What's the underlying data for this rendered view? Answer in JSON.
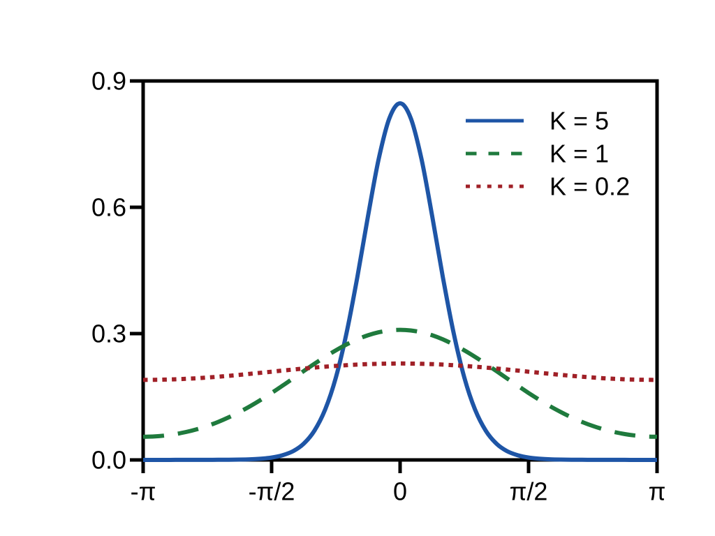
{
  "figure": {
    "background": "#ffffff",
    "axes_color": "#000000",
    "text_color": "#000000"
  },
  "chart_data": {
    "type": "line",
    "title": "",
    "xlabel": "",
    "ylabel": "",
    "description": "Circular (von Mises style) distribution density curves over angle, for three concentration parameters K",
    "x_unit": "radians, shown as multiples of pi",
    "xlim": [
      -1,
      1
    ],
    "ylim": [
      0,
      0.9
    ],
    "grid": false,
    "legend_position": "upper right",
    "x_ticks": [
      {
        "pos": -1.0,
        "label": "-π"
      },
      {
        "pos": -0.5,
        "label": "-π/2"
      },
      {
        "pos": 0.0,
        "label": "0"
      },
      {
        "pos": 0.5,
        "label": "π/2"
      },
      {
        "pos": 1.0,
        "label": "π"
      }
    ],
    "y_ticks": [
      {
        "pos": 0.0,
        "label": "0.0"
      },
      {
        "pos": 0.3,
        "label": "0.3"
      },
      {
        "pos": 0.6,
        "label": "0.6"
      },
      {
        "pos": 0.9,
        "label": "0.9"
      }
    ],
    "x_over_pi": [
      -1,
      -0.9583,
      -0.9167,
      -0.875,
      -0.8333,
      -0.7917,
      -0.75,
      -0.7083,
      -0.6667,
      -0.625,
      -0.5833,
      -0.5417,
      -0.5,
      -0.4583,
      -0.4167,
      -0.375,
      -0.3333,
      -0.2917,
      -0.25,
      -0.2083,
      -0.1667,
      -0.125,
      -0.0833,
      -0.0417,
      0,
      0.0417,
      0.0833,
      0.125,
      0.1667,
      0.2083,
      0.25,
      0.2917,
      0.3333,
      0.375,
      0.4167,
      0.4583,
      0.5,
      0.5417,
      0.5833,
      0.625,
      0.6667,
      0.7083,
      0.75,
      0.7917,
      0.8333,
      0.875,
      0.9167,
      0.9583,
      1
    ],
    "series": [
      {
        "name": "K = 5",
        "color": "#1e55a6",
        "style": "solid",
        "y": [
          0.0,
          0.0,
          0.0,
          0.0001,
          0.0001,
          0.0001,
          0.0002,
          0.0003,
          0.0005,
          0.0008,
          0.0015,
          0.003,
          0.0057,
          0.011,
          0.0208,
          0.0386,
          0.0695,
          0.1197,
          0.1956,
          0.3015,
          0.4334,
          0.5787,
          0.7143,
          0.8115,
          0.847,
          0.8115,
          0.7143,
          0.5787,
          0.4334,
          0.3015,
          0.1956,
          0.1197,
          0.0695,
          0.0386,
          0.0208,
          0.011,
          0.0057,
          0.003,
          0.0015,
          0.0008,
          0.0005,
          0.0003,
          0.0002,
          0.0001,
          0.0001,
          0.0001,
          0.0,
          0.0,
          0.0
        ]
      },
      {
        "name": "K = 1",
        "color": "#1f7a3d",
        "style": "dashed",
        "y": [
          0.055,
          0.0557,
          0.0578,
          0.0613,
          0.0663,
          0.0727,
          0.0807,
          0.0902,
          0.1013,
          0.1138,
          0.1277,
          0.1428,
          0.159,
          0.176,
          0.1934,
          0.211,
          0.2283,
          0.2448,
          0.2603,
          0.2742,
          0.2862,
          0.296,
          0.3031,
          0.3075,
          0.309,
          0.3075,
          0.3031,
          0.296,
          0.2862,
          0.2742,
          0.2603,
          0.2448,
          0.2283,
          0.211,
          0.1934,
          0.176,
          0.159,
          0.1428,
          0.1277,
          0.1138,
          0.1013,
          0.0902,
          0.0807,
          0.0727,
          0.0663,
          0.0613,
          0.0578,
          0.0557,
          0.055
        ]
      },
      {
        "name": "K = 0.2",
        "color": "#a02027",
        "style": "dotted",
        "y": [
          0.19,
          0.1902,
          0.1907,
          0.1915,
          0.1926,
          0.194,
          0.1957,
          0.1976,
          0.1998,
          0.202,
          0.2045,
          0.207,
          0.2095,
          0.2121,
          0.2146,
          0.217,
          0.2193,
          0.2214,
          0.2233,
          0.225,
          0.2264,
          0.2275,
          0.2283,
          0.2288,
          0.229,
          0.2288,
          0.2283,
          0.2275,
          0.2264,
          0.225,
          0.2233,
          0.2214,
          0.2193,
          0.217,
          0.2146,
          0.2121,
          0.2095,
          0.207,
          0.2045,
          0.202,
          0.1998,
          0.1976,
          0.1957,
          0.194,
          0.1926,
          0.1915,
          0.1907,
          0.1902,
          0.19
        ]
      }
    ]
  }
}
